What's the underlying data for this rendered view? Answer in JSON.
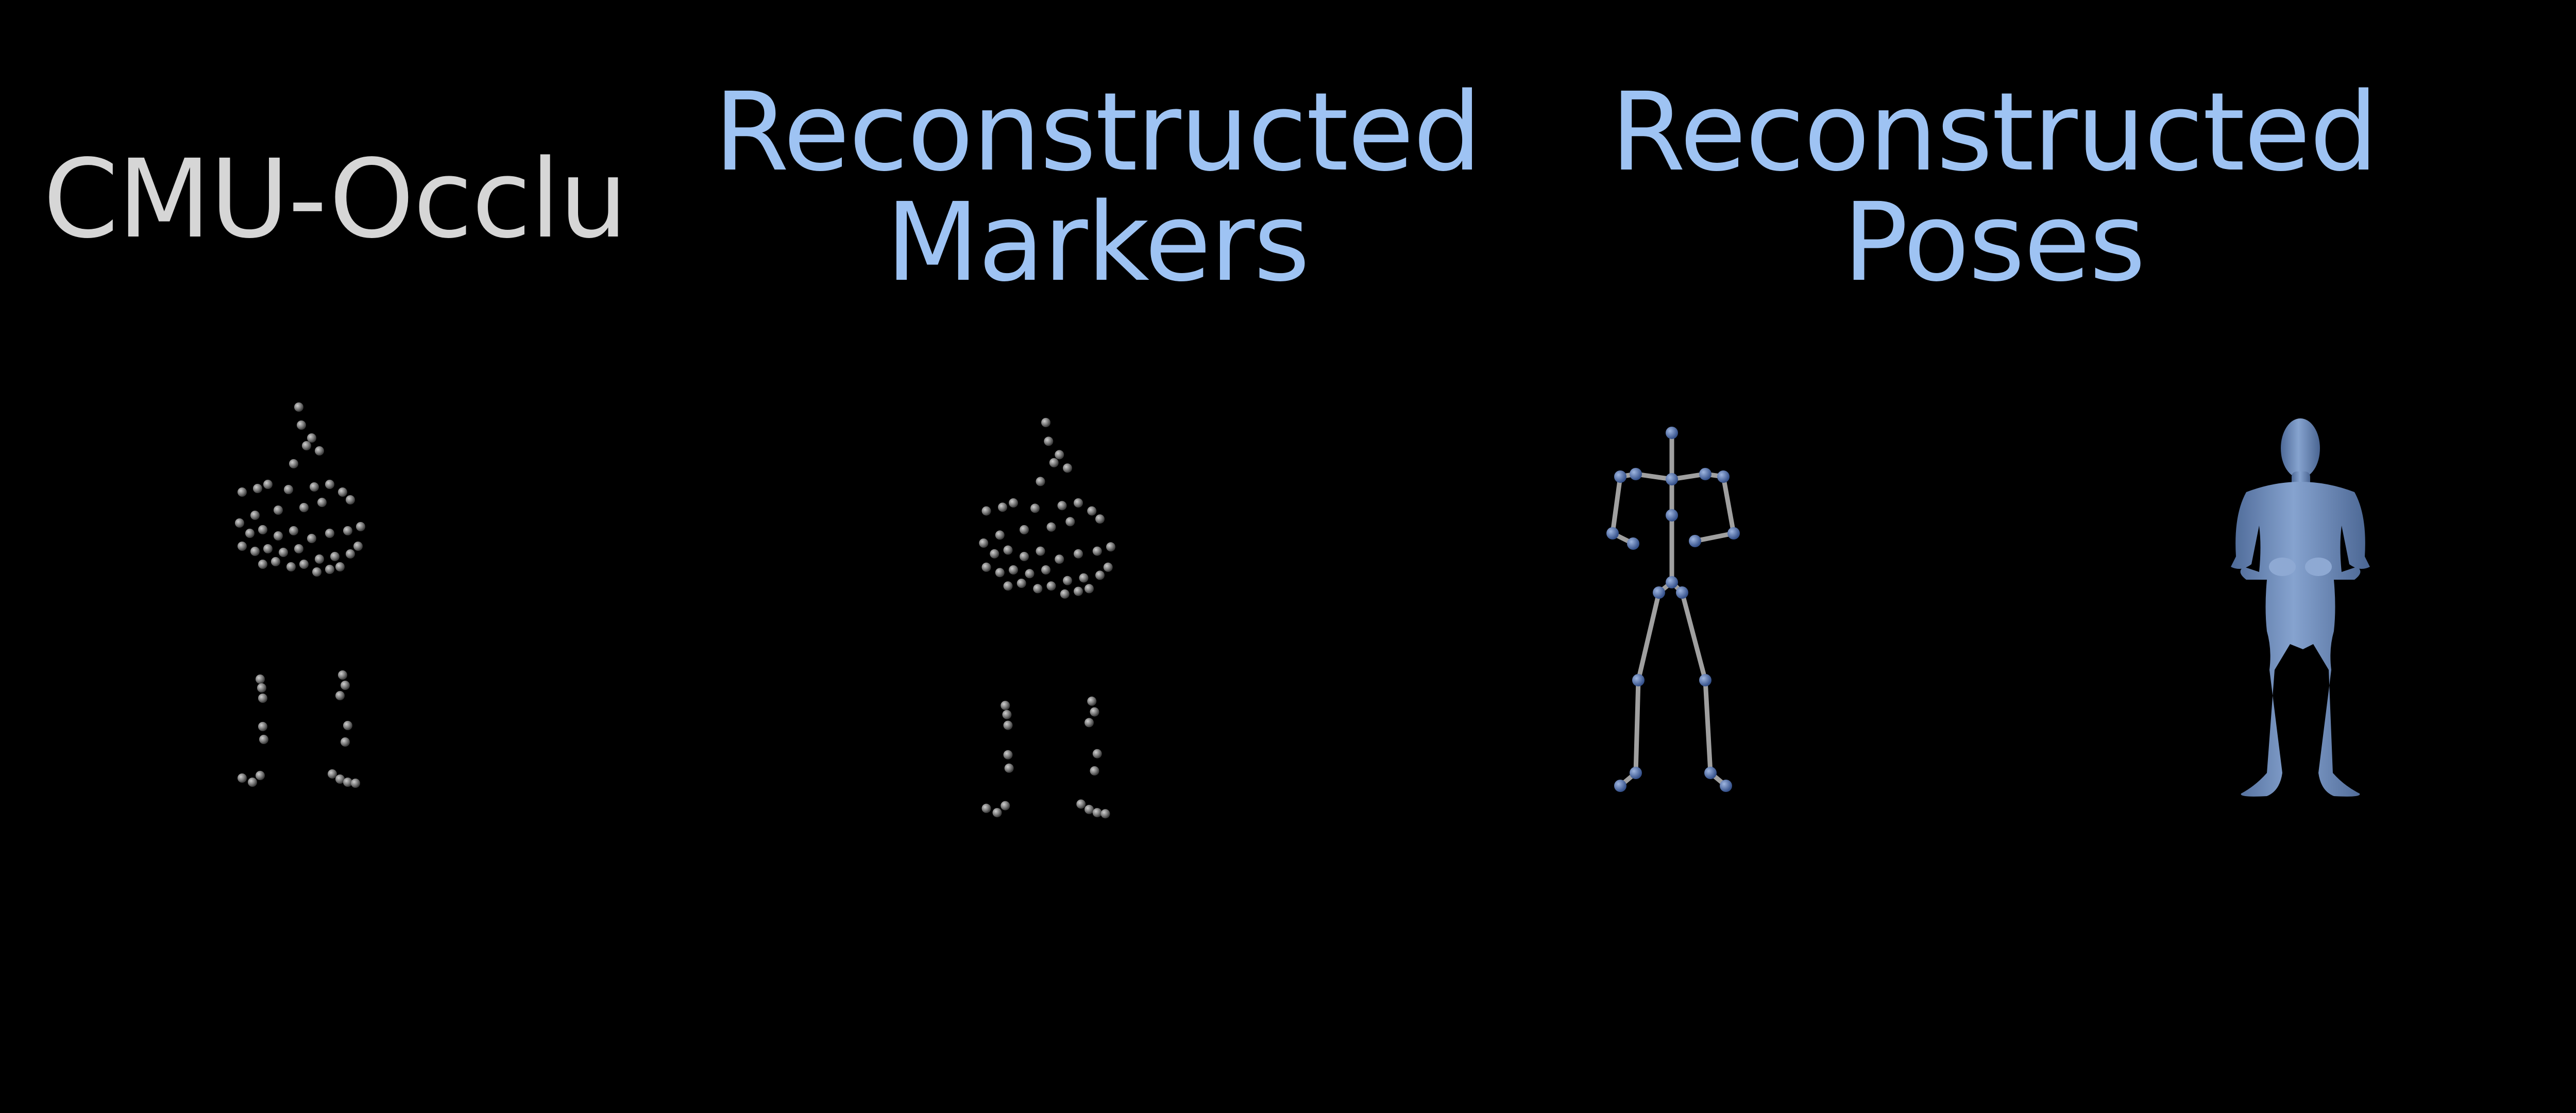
{
  "panels": [
    {
      "title": "CMU-Occlu",
      "color": "#d6d6d6"
    },
    {
      "title": "Reconstructed\nMarkers",
      "color": "#9ec3f3"
    },
    {
      "title": "Reconstructed\nPoses",
      "color": "#9ec3f3"
    }
  ],
  "colors": {
    "background": "#000000",
    "marker": "#8a8a8a",
    "skeleton_bone": "#9a9a9a",
    "skeleton_joint": "#4a6aa8",
    "body_mesh": "#6f8fbf"
  }
}
